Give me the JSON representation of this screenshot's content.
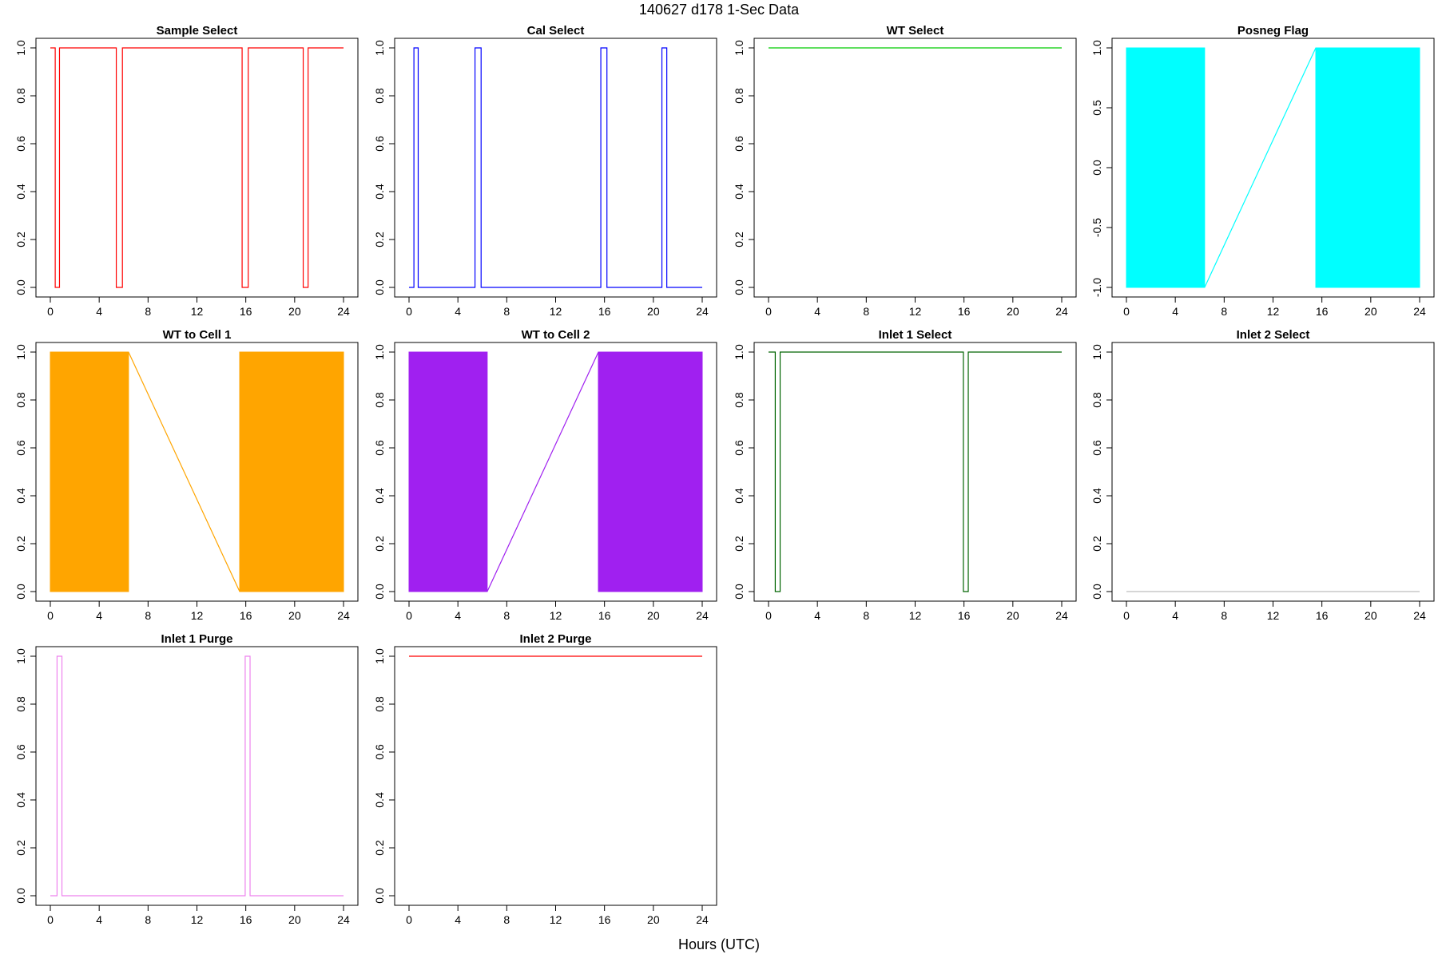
{
  "page": {
    "title": "140627   d178   1-Sec Data",
    "xlabel": "Hours (UTC)"
  },
  "chart_data": [
    {
      "type": "line",
      "title": "Sample Select",
      "color": "#ff0000",
      "xlim": [
        0,
        24
      ],
      "ylim": [
        0,
        1
      ],
      "xticks": [
        0,
        4,
        8,
        12,
        16,
        20,
        24
      ],
      "yticks": [
        "0.0",
        "0.2",
        "0.4",
        "0.6",
        "0.8",
        "1.0"
      ],
      "series": [
        {
          "x": [
            0,
            0.4,
            0.4,
            0.75,
            0.75,
            5.4,
            5.4,
            5.9,
            5.9,
            15.7,
            15.7,
            16.2,
            16.2,
            20.7,
            20.7,
            21.1,
            21.1,
            24
          ],
          "y": [
            1,
            1,
            0,
            0,
            1,
            1,
            0,
            0,
            1,
            1,
            0,
            0,
            1,
            1,
            0,
            0,
            1,
            1
          ]
        }
      ]
    },
    {
      "type": "line",
      "title": "Cal Select",
      "color": "#0000ff",
      "xlim": [
        0,
        24
      ],
      "ylim": [
        0,
        1
      ],
      "xticks": [
        0,
        4,
        8,
        12,
        16,
        20,
        24
      ],
      "yticks": [
        "0.0",
        "0.2",
        "0.4",
        "0.6",
        "0.8",
        "1.0"
      ],
      "series": [
        {
          "x": [
            0,
            0.4,
            0.4,
            0.75,
            0.75,
            5.4,
            5.4,
            5.9,
            5.9,
            15.7,
            15.7,
            16.2,
            16.2,
            20.7,
            20.7,
            21.1,
            21.1,
            24
          ],
          "y": [
            0,
            0,
            1,
            1,
            0,
            0,
            1,
            1,
            0,
            0,
            1,
            1,
            0,
            0,
            1,
            1,
            0,
            0
          ]
        }
      ]
    },
    {
      "type": "line",
      "title": "WT Select",
      "color": "#00cc00",
      "xlim": [
        0,
        24
      ],
      "ylim": [
        0,
        1
      ],
      "xticks": [
        0,
        4,
        8,
        12,
        16,
        20,
        24
      ],
      "yticks": [
        "0.0",
        "0.2",
        "0.4",
        "0.6",
        "0.8",
        "1.0"
      ],
      "series": [
        {
          "x": [
            0,
            24
          ],
          "y": [
            1,
            1
          ]
        }
      ]
    },
    {
      "type": "area",
      "title": "Posneg Flag",
      "color": "#00ffff",
      "xlim": [
        0,
        24
      ],
      "ylim": [
        -1,
        1
      ],
      "xticks": [
        0,
        4,
        8,
        12,
        16,
        20,
        24
      ],
      "yticks": [
        "-1.0",
        "-0.5",
        "0.0",
        "0.5",
        "1.0"
      ],
      "filled_ranges": [
        [
          0,
          6.4
        ],
        [
          15.5,
          24
        ]
      ],
      "series": [
        {
          "x": [
            6.4,
            15.5
          ],
          "y": [
            -1,
            1
          ]
        }
      ]
    },
    {
      "type": "area",
      "title": "WT to Cell 1",
      "color": "#ffa500",
      "xlim": [
        0,
        24
      ],
      "ylim": [
        0,
        1
      ],
      "xticks": [
        0,
        4,
        8,
        12,
        16,
        20,
        24
      ],
      "yticks": [
        "0.0",
        "0.2",
        "0.4",
        "0.6",
        "0.8",
        "1.0"
      ],
      "filled_ranges": [
        [
          0,
          6.4
        ],
        [
          15.5,
          24
        ]
      ],
      "series": [
        {
          "x": [
            6.4,
            15.5
          ],
          "y": [
            1,
            0
          ]
        }
      ]
    },
    {
      "type": "area",
      "title": "WT to Cell 2",
      "color": "#a020f0",
      "xlim": [
        0,
        24
      ],
      "ylim": [
        0,
        1
      ],
      "xticks": [
        0,
        4,
        8,
        12,
        16,
        20,
        24
      ],
      "yticks": [
        "0.0",
        "0.2",
        "0.4",
        "0.6",
        "0.8",
        "1.0"
      ],
      "filled_ranges": [
        [
          0,
          6.4
        ],
        [
          15.5,
          24
        ]
      ],
      "series": [
        {
          "x": [
            6.4,
            15.5
          ],
          "y": [
            0,
            1
          ]
        }
      ]
    },
    {
      "type": "line",
      "title": "Inlet 1 Select",
      "color": "#006400",
      "xlim": [
        0,
        24
      ],
      "ylim": [
        0,
        1
      ],
      "xticks": [
        0,
        4,
        8,
        12,
        16,
        20,
        24
      ],
      "yticks": [
        "0.0",
        "0.2",
        "0.4",
        "0.6",
        "0.8",
        "1.0"
      ],
      "series": [
        {
          "x": [
            0,
            0.55,
            0.55,
            0.95,
            0.95,
            15.95,
            15.95,
            16.35,
            16.35,
            24
          ],
          "y": [
            1,
            1,
            0,
            0,
            1,
            1,
            0,
            0,
            1,
            1
          ]
        }
      ]
    },
    {
      "type": "line",
      "title": "Inlet 2 Select",
      "color": "#bebebe",
      "xlim": [
        0,
        24
      ],
      "ylim": [
        0,
        1
      ],
      "xticks": [
        0,
        4,
        8,
        12,
        16,
        20,
        24
      ],
      "yticks": [
        "0.0",
        "0.2",
        "0.4",
        "0.6",
        "0.8",
        "1.0"
      ],
      "series": [
        {
          "x": [
            0,
            24
          ],
          "y": [
            0,
            0
          ]
        }
      ]
    },
    {
      "type": "line",
      "title": "Inlet 1 Purge",
      "color": "#ee82ee",
      "xlim": [
        0,
        24
      ],
      "ylim": [
        0,
        1
      ],
      "xticks": [
        0,
        4,
        8,
        12,
        16,
        20,
        24
      ],
      "yticks": [
        "0.0",
        "0.2",
        "0.4",
        "0.6",
        "0.8",
        "1.0"
      ],
      "series": [
        {
          "x": [
            0,
            0.55,
            0.55,
            0.95,
            0.95,
            15.95,
            15.95,
            16.35,
            16.35,
            24
          ],
          "y": [
            0,
            0,
            1,
            1,
            0,
            0,
            1,
            1,
            0,
            0
          ]
        }
      ]
    },
    {
      "type": "line",
      "title": "Inlet 2 Purge",
      "color": "#ff0000",
      "xlim": [
        0,
        24
      ],
      "ylim": [
        0,
        1
      ],
      "xticks": [
        0,
        4,
        8,
        12,
        16,
        20,
        24
      ],
      "yticks": [
        "0.0",
        "0.2",
        "0.4",
        "0.6",
        "0.8",
        "1.0"
      ],
      "series": [
        {
          "x": [
            0,
            24
          ],
          "y": [
            1,
            1
          ]
        }
      ]
    }
  ]
}
